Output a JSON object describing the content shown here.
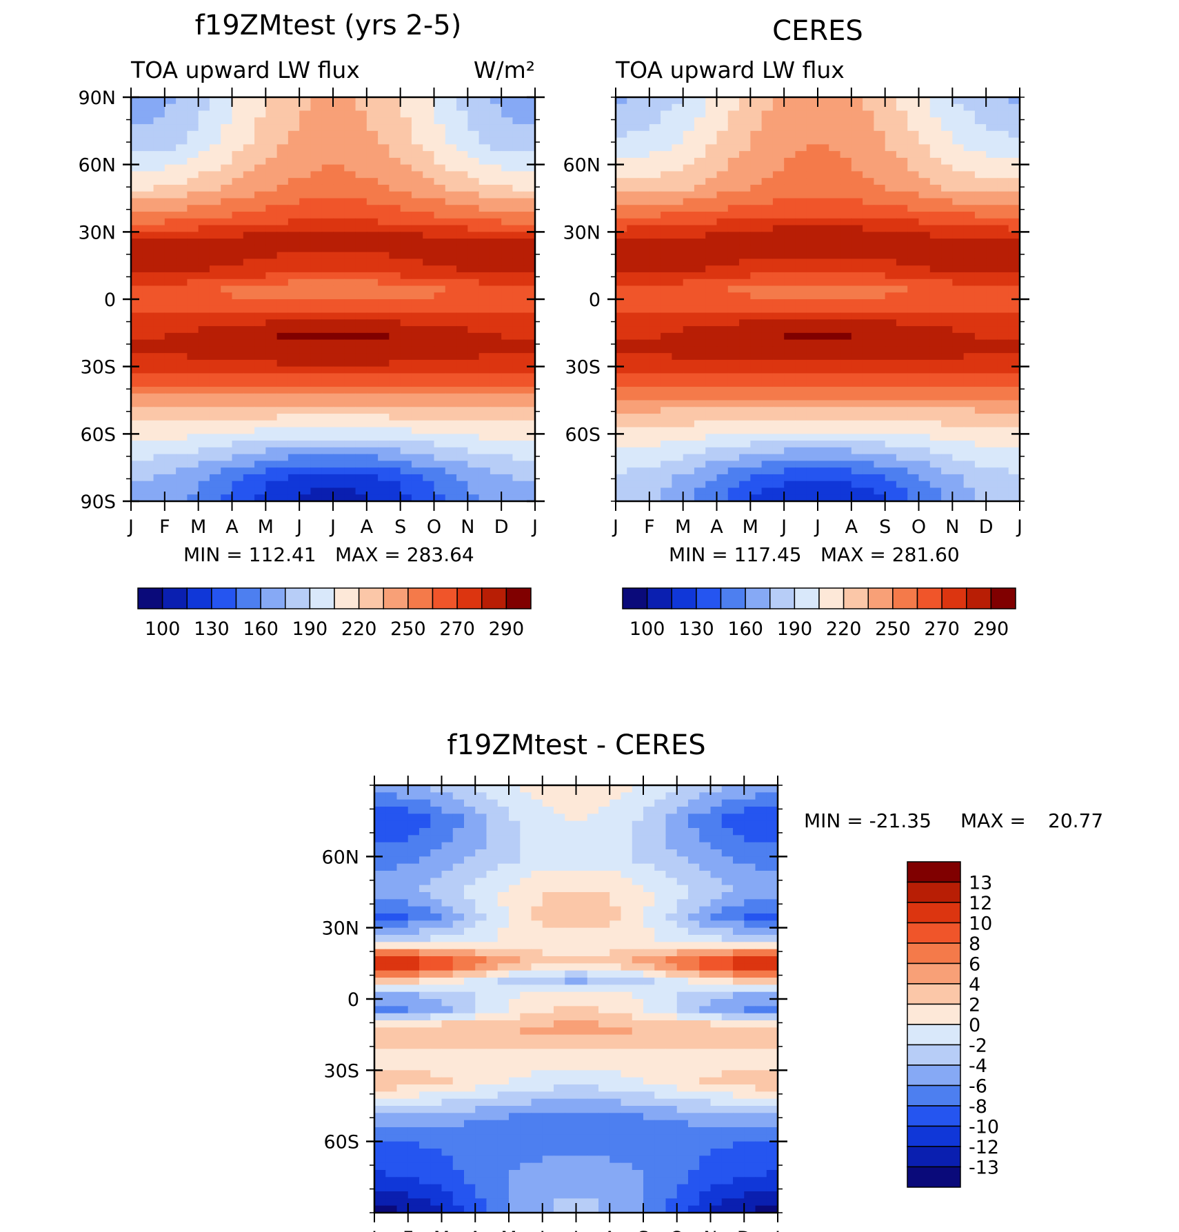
{
  "colors": {
    "abs_scale": [
      "#0a0a7a",
      "#0a1fb0",
      "#1037d8",
      "#2555f0",
      "#4d7ff0",
      "#86a9f5",
      "#b7cdf7",
      "#d9e8fa",
      "#fde8d8",
      "#fbc7a8",
      "#f8a077",
      "#f47a4a",
      "#f0552a",
      "#dc3510",
      "#b81e05",
      "#800000"
    ],
    "diff_scale": [
      "#0a0a7a",
      "#0a1fb0",
      "#1037d8",
      "#2555f0",
      "#4d7ff0",
      "#86a9f5",
      "#b7cdf7",
      "#d9e8fa",
      "#fde8d8",
      "#fbc7a8",
      "#f8a077",
      "#f47a4a",
      "#f0552a",
      "#dc3510",
      "#b81e05",
      "#800000"
    ]
  },
  "chart_data": [
    {
      "type": "heatmap",
      "id": "panel-model",
      "title": "f19ZMtest (yrs 2-5)",
      "subtitle_left": "TOA upward LW flux",
      "units": "W/m²",
      "x_tick_labels": [
        "J",
        "F",
        "M",
        "A",
        "M",
        "J",
        "J",
        "A",
        "S",
        "O",
        "N",
        "D",
        "J"
      ],
      "y_tick_labels": [
        "90N",
        "60N",
        "30N",
        "0",
        "30S",
        "60S",
        "90S"
      ],
      "xlim": [
        0,
        12
      ],
      "ylim": [
        -90,
        90
      ],
      "min_label": "MIN = 112.41",
      "max_label": "MAX = 283.64",
      "min": 112.41,
      "max": 283.64,
      "colorbar_levels": [
        "100",
        "130",
        "160",
        "190",
        "220",
        "250",
        "270",
        "290"
      ],
      "colorbar_bounds": [
        100,
        290
      ],
      "bands": [
        {
          "lat": 90,
          "jan": 165,
          "jul": 220
        },
        {
          "lat": 70,
          "jan": 175,
          "jul": 225
        },
        {
          "lat": 50,
          "jan": 205,
          "jul": 235
        },
        {
          "lat": 35,
          "jan": 240,
          "jul": 255
        },
        {
          "lat": 28,
          "jan": 262,
          "jul": 272
        },
        {
          "lat": 20,
          "jan": 276,
          "jul": 265
        },
        {
          "lat": 12,
          "jan": 270,
          "jul": 255
        },
        {
          "lat": 5,
          "jan": 250,
          "jul": 232
        },
        {
          "lat": 0,
          "jan": 246,
          "jul": 240
        },
        {
          "lat": -8,
          "jan": 255,
          "jul": 262
        },
        {
          "lat": -15,
          "jan": 264,
          "jul": 282
        },
        {
          "lat": -22,
          "jan": 268,
          "jul": 276
        },
        {
          "lat": -30,
          "jan": 262,
          "jul": 265
        },
        {
          "lat": -40,
          "jan": 238,
          "jul": 240
        },
        {
          "lat": -50,
          "jan": 215,
          "jul": 212
        },
        {
          "lat": -60,
          "jan": 200,
          "jul": 188
        },
        {
          "lat": -70,
          "jan": 185,
          "jul": 158
        },
        {
          "lat": -80,
          "jan": 172,
          "jul": 128
        },
        {
          "lat": -90,
          "jan": 168,
          "jul": 118
        }
      ]
    },
    {
      "type": "heatmap",
      "id": "panel-obs",
      "title": "CERES",
      "subtitle_left": "TOA upward LW flux",
      "x_tick_labels": [
        "J",
        "F",
        "M",
        "A",
        "M",
        "J",
        "J",
        "A",
        "S",
        "O",
        "N",
        "D",
        "J"
      ],
      "y_tick_labels": [
        "60N",
        "30N",
        "0",
        "30S",
        "60S"
      ],
      "xlim": [
        0,
        12
      ],
      "ylim": [
        -90,
        90
      ],
      "min_label": "MIN = 117.45",
      "max_label": "MAX = 281.60",
      "min": 117.45,
      "max": 281.6,
      "colorbar_levels": [
        "100",
        "130",
        "160",
        "190",
        "220",
        "250",
        "270",
        "290"
      ],
      "colorbar_bounds": [
        100,
        290
      ],
      "bands": [
        {
          "lat": 90,
          "jan": 170,
          "jul": 225
        },
        {
          "lat": 70,
          "jan": 185,
          "jul": 230
        },
        {
          "lat": 50,
          "jan": 210,
          "jul": 236
        },
        {
          "lat": 38,
          "jan": 240,
          "jul": 252
        },
        {
          "lat": 28,
          "jan": 262,
          "jul": 276
        },
        {
          "lat": 20,
          "jan": 278,
          "jul": 268
        },
        {
          "lat": 12,
          "jan": 270,
          "jul": 255
        },
        {
          "lat": 5,
          "jan": 252,
          "jul": 236
        },
        {
          "lat": 0,
          "jan": 248,
          "jul": 242
        },
        {
          "lat": -8,
          "jan": 256,
          "jul": 264
        },
        {
          "lat": -15,
          "jan": 264,
          "jul": 280
        },
        {
          "lat": -22,
          "jan": 268,
          "jul": 276
        },
        {
          "lat": -30,
          "jan": 262,
          "jul": 264
        },
        {
          "lat": -40,
          "jan": 240,
          "jul": 240
        },
        {
          "lat": -50,
          "jan": 218,
          "jul": 214
        },
        {
          "lat": -60,
          "jan": 203,
          "jul": 192
        },
        {
          "lat": -70,
          "jan": 190,
          "jul": 162
        },
        {
          "lat": -80,
          "jan": 180,
          "jul": 135
        },
        {
          "lat": -90,
          "jan": 176,
          "jul": 122
        }
      ]
    },
    {
      "type": "heatmap",
      "id": "panel-diff",
      "title": "f19ZMtest - CERES",
      "x_tick_labels": [
        "J",
        "F",
        "M",
        "A",
        "M",
        "J",
        "J",
        "A",
        "S",
        "O",
        "N",
        "D",
        "J"
      ],
      "y_tick_labels": [
        "60N",
        "30N",
        "0",
        "30S",
        "60S"
      ],
      "xlim": [
        0,
        12
      ],
      "ylim": [
        -90,
        90
      ],
      "min_label": "MIN = -21.35",
      "max_label": "MAX =",
      "max_value_label": "20.77",
      "min": -21.35,
      "max": 20.77,
      "colorbar_levels": [
        "13",
        "12",
        "10",
        "8",
        "6",
        "4",
        "2",
        "0",
        "-2",
        "-4",
        "-6",
        "-8",
        "-10",
        "-12",
        "-13"
      ],
      "colorbar_bounds": [
        -14,
        14
      ],
      "bands": [
        {
          "lat": 90,
          "jan": -4,
          "jul": 1
        },
        {
          "lat": 75,
          "jan": -9,
          "jul": 0
        },
        {
          "lat": 60,
          "jan": -6,
          "jul": -1
        },
        {
          "lat": 45,
          "jan": -4,
          "jul": 2
        },
        {
          "lat": 35,
          "jan": -8,
          "jul": 3
        },
        {
          "lat": 25,
          "jan": -2,
          "jul": 1
        },
        {
          "lat": 15,
          "jan": 12,
          "jul": 2
        },
        {
          "lat": 8,
          "jan": 3,
          "jul": -4
        },
        {
          "lat": 2,
          "jan": -4,
          "jul": 1
        },
        {
          "lat": -5,
          "jan": -6,
          "jul": 2
        },
        {
          "lat": -12,
          "jan": 3,
          "jul": 4
        },
        {
          "lat": -25,
          "jan": 1,
          "jul": 1
        },
        {
          "lat": -35,
          "jan": 3,
          "jul": -1
        },
        {
          "lat": -50,
          "jan": -4,
          "jul": -6
        },
        {
          "lat": -60,
          "jan": -7,
          "jul": -6
        },
        {
          "lat": -75,
          "jan": -9,
          "jul": -4
        },
        {
          "lat": -90,
          "jan": -13,
          "jul": -3
        }
      ]
    }
  ]
}
